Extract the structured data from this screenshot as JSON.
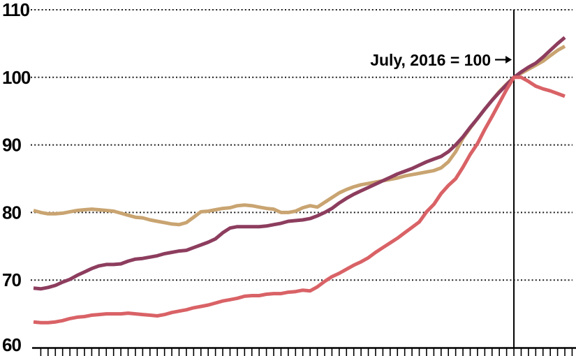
{
  "page": {
    "background_color": "#ffffff"
  },
  "chart_data": {
    "type": "line",
    "title": "",
    "annotation": {
      "text": "July, 2016 = 100",
      "arrow": "→"
    },
    "x_axis": {
      "label": "",
      "unit": "months",
      "points": 74,
      "tick_style": "short unlabeled monthly ticks below baseline",
      "reference_point_index": 66
    },
    "y_axis": {
      "label": "",
      "min": 60,
      "max": 110,
      "ticks": [
        110,
        100,
        90,
        80,
        70,
        60
      ],
      "gridlines": "dotted horizontal lines at 70-110, solid baseline at 60"
    },
    "reference_line": {
      "style": "vertical solid black line at July 2016 where all series equal 100"
    },
    "colors": {
      "plum": "#8d3d5e",
      "tan": "#c9a471",
      "red": "#d96266",
      "axis": "#000000",
      "gridline": "#1a1a1a"
    },
    "series": [
      {
        "name": "tan",
        "color": "#c9a471",
        "values": [
          80.3,
          80.0,
          79.8,
          79.8,
          79.9,
          80.1,
          80.3,
          80.4,
          80.5,
          80.4,
          80.3,
          80.2,
          79.9,
          79.6,
          79.3,
          79.2,
          78.9,
          78.7,
          78.5,
          78.3,
          78.2,
          78.5,
          79.3,
          80.1,
          80.2,
          80.4,
          80.6,
          80.7,
          81.0,
          81.1,
          81.0,
          80.8,
          80.6,
          80.5,
          80.0,
          80.0,
          80.2,
          80.7,
          81.0,
          80.8,
          81.5,
          82.2,
          82.9,
          83.4,
          83.8,
          84.1,
          84.3,
          84.5,
          84.7,
          84.9,
          85.1,
          85.4,
          85.6,
          85.8,
          86.0,
          86.2,
          86.6,
          87.5,
          89.0,
          91.0,
          92.5,
          93.9,
          95.3,
          96.6,
          97.9,
          99.0,
          100.0,
          100.6,
          101.2,
          101.8,
          102.4,
          103.2,
          104.0,
          104.6
        ]
      },
      {
        "name": "plum",
        "color": "#8d3d5e",
        "values": [
          68.8,
          68.7,
          68.9,
          69.2,
          69.7,
          70.1,
          70.7,
          71.2,
          71.7,
          72.1,
          72.3,
          72.3,
          72.4,
          72.8,
          73.1,
          73.2,
          73.4,
          73.6,
          73.9,
          74.1,
          74.3,
          74.4,
          74.8,
          75.2,
          75.6,
          76.1,
          77.0,
          77.7,
          77.9,
          77.9,
          77.9,
          77.9,
          78.0,
          78.2,
          78.4,
          78.7,
          78.8,
          78.9,
          79.1,
          79.5,
          80.0,
          80.6,
          81.4,
          82.1,
          82.7,
          83.2,
          83.7,
          84.2,
          84.7,
          85.2,
          85.7,
          86.1,
          86.5,
          87.0,
          87.5,
          87.9,
          88.3,
          89.0,
          90.0,
          91.2,
          92.6,
          93.9,
          95.3,
          96.6,
          97.8,
          98.9,
          100.0,
          100.8,
          101.5,
          102.1,
          103.0,
          104.0,
          105.0,
          105.9
        ]
      },
      {
        "name": "red",
        "color": "#d96266",
        "values": [
          63.8,
          63.7,
          63.7,
          63.8,
          64.0,
          64.3,
          64.5,
          64.6,
          64.8,
          64.9,
          65.0,
          65.0,
          65.0,
          65.1,
          65.0,
          64.9,
          64.8,
          64.7,
          64.9,
          65.2,
          65.4,
          65.6,
          65.9,
          66.1,
          66.3,
          66.6,
          66.9,
          67.1,
          67.3,
          67.6,
          67.7,
          67.7,
          67.9,
          68.0,
          68.0,
          68.2,
          68.3,
          68.5,
          68.4,
          69.0,
          69.8,
          70.5,
          71.0,
          71.6,
          72.2,
          72.7,
          73.3,
          74.1,
          74.8,
          75.5,
          76.2,
          77.0,
          77.8,
          78.6,
          80.1,
          81.2,
          82.8,
          84.0,
          85.0,
          86.7,
          88.6,
          90.2,
          92.3,
          94.2,
          96.2,
          98.2,
          100.0,
          100.0,
          99.4,
          98.7,
          98.3,
          98.0,
          97.6,
          97.2
        ]
      }
    ]
  }
}
